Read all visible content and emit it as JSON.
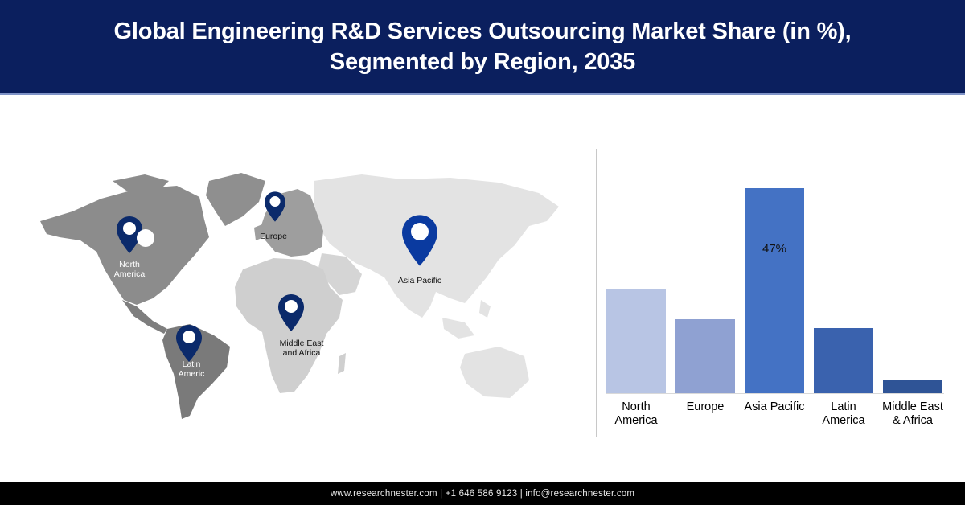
{
  "header": {
    "title_line1": "Global Engineering R&D Services Outsourcing Market Share (in %),",
    "title_line2": "Segmented by Region, 2035"
  },
  "map": {
    "pins": [
      {
        "label_line1": "North",
        "label_line2": "America",
        "color": "#0b2a6b"
      },
      {
        "label_line1": "Europe",
        "label_line2": "",
        "color": "#0b2a6b"
      },
      {
        "label_line1": "Asia Pacific",
        "label_line2": "",
        "color": "#0a3aa0"
      },
      {
        "label_line1": "Middle East",
        "label_line2": "and Africa",
        "color": "#0b2a6b"
      },
      {
        "label_line1": "Latin",
        "label_line2": "Americ",
        "color": "#0b2a6b"
      }
    ]
  },
  "chart_data": {
    "type": "bar",
    "title": "Global Engineering R&D Services Outsourcing Market Share (in %), Segmented by Region, 2035",
    "categories": [
      "North America",
      "Europe",
      "Asia Pacific",
      "Latin America",
      "Middle East & Africa"
    ],
    "values": [
      24,
      17,
      47,
      15,
      3
    ],
    "value_status": [
      "estimated",
      "estimated",
      "labeled",
      "estimated",
      "estimated"
    ],
    "value_note": "Only Asia Pacific (47%) is labeled in the chart; the other values are estimated from bar heights relative to that bar.",
    "data_labels": {
      "Asia Pacific": "47%"
    },
    "colors": [
      "#b8c5e4",
      "#8fa1d2",
      "#4472c4",
      "#3a62ae",
      "#2f5496"
    ],
    "xlabel": "",
    "ylabel": "",
    "ylim": [
      0,
      50
    ],
    "grid": false,
    "legend": null
  },
  "chart": {
    "bars": [
      {
        "line1": "North",
        "line2": "America",
        "value": 24,
        "color": "#b8c5e4",
        "label": ""
      },
      {
        "line1": "Europe",
        "line2": "",
        "value": 17,
        "color": "#8fa1d2",
        "label": ""
      },
      {
        "line1": "Asia Pacific",
        "line2": "",
        "value": 47,
        "color": "#4472c4",
        "label": "47%"
      },
      {
        "line1": "Latin",
        "line2": "America",
        "value": 15,
        "color": "#3a62ae",
        "label": ""
      },
      {
        "line1": "Middle East",
        "line2": "& Africa",
        "value": 3,
        "color": "#2f5496",
        "label": ""
      }
    ]
  },
  "footer": {
    "text": "www.researchnester.com | +1 646 586 9123 | info@researchnester.com"
  }
}
